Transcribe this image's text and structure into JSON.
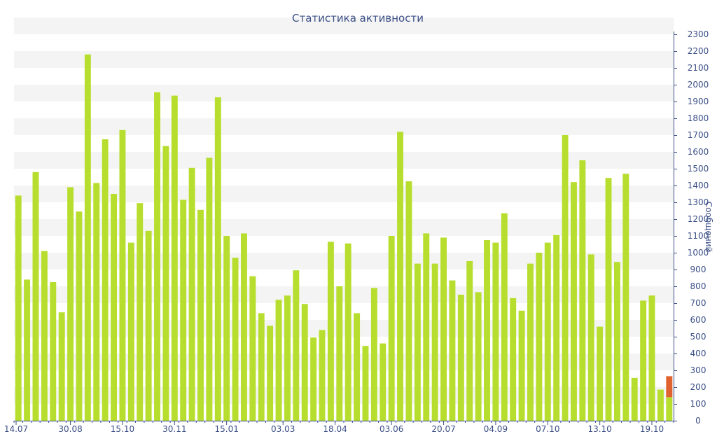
{
  "chart_data": {
    "type": "bar",
    "title": "Статистика активности",
    "ylabel": "Сообщений",
    "xlabel": "",
    "ylim": [
      0,
      2300
    ],
    "y_ticks": [
      0,
      100,
      200,
      300,
      400,
      500,
      600,
      700,
      800,
      900,
      1000,
      1100,
      1200,
      1300,
      1400,
      1500,
      1600,
      1700,
      1800,
      1900,
      2000,
      2100,
      2200,
      2300
    ],
    "y_axis_side": "right",
    "x_tick_labels": [
      {
        "label": "14.07",
        "index": 0
      },
      {
        "label": "30.08",
        "index": 6.5
      },
      {
        "label": "15.10",
        "index": 12.5
      },
      {
        "label": "30.11",
        "index": 18.5
      },
      {
        "label": "15.01",
        "index": 24.5
      },
      {
        "label": "03.03",
        "index": 31
      },
      {
        "label": "18.04",
        "index": 37
      },
      {
        "label": "03.06",
        "index": 43.5
      },
      {
        "label": "20.07",
        "index": 49.5
      },
      {
        "label": "04.09",
        "index": 55.5
      },
      {
        "label": "07.10",
        "index": 61.5
      },
      {
        "label": "13.10",
        "index": 67.5
      },
      {
        "label": "19.10",
        "index": 73.5
      }
    ],
    "grid": "alternating horizontal bands",
    "values": [
      1340,
      840,
      1480,
      1010,
      825,
      645,
      1390,
      1245,
      2180,
      1415,
      1675,
      1350,
      1730,
      1060,
      1295,
      1130,
      1955,
      1635,
      1935,
      1315,
      1505,
      1255,
      1565,
      1925,
      1100,
      970,
      1115,
      860,
      640,
      565,
      720,
      745,
      895,
      695,
      495,
      540,
      1065,
      800,
      1055,
      640,
      445,
      790,
      460,
      1100,
      1720,
      1425,
      935,
      1115,
      935,
      1090,
      835,
      750,
      950,
      765,
      1075,
      1060,
      1235,
      730,
      655,
      935,
      1000,
      1060,
      1105,
      1700,
      1420,
      1550,
      990,
      560,
      1445,
      945,
      1470,
      255,
      715,
      745,
      185,
      140
    ],
    "highlight": {
      "index": 75,
      "value": 265,
      "segment_from": 140,
      "color": "#e0622f"
    },
    "colors": {
      "bar": "#b7de2e",
      "highlight": "#e0622f",
      "text": "#3b4f86",
      "axis": "#3b4f86",
      "band": "#f4f4f4"
    }
  }
}
